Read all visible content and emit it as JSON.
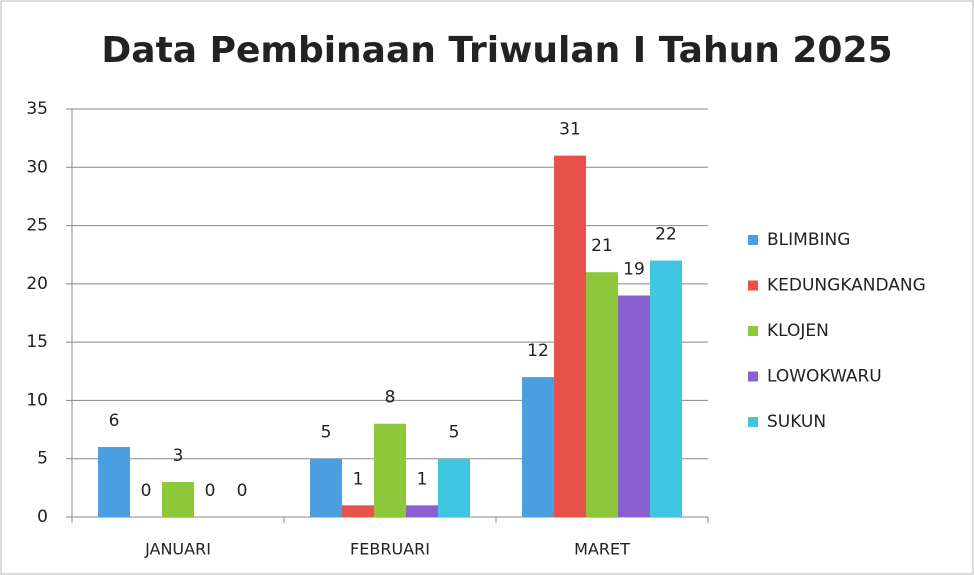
{
  "chart_data": {
    "type": "bar",
    "title": "Data Pembinaan Triwulan I Tahun 2025",
    "categories": [
      "JANUARI",
      "FEBRUARI",
      "MARET"
    ],
    "series": [
      {
        "name": "BLIMBING",
        "color": "#4a9fe0",
        "values": [
          6,
          5,
          12
        ]
      },
      {
        "name": "KEDUNGKANDANG",
        "color": "#e8504a",
        "values": [
          0,
          1,
          31
        ]
      },
      {
        "name": "KLOJEN",
        "color": "#8cc83a",
        "values": [
          3,
          8,
          21
        ]
      },
      {
        "name": "LOWOKWARU",
        "color": "#8a5fd0",
        "values": [
          0,
          1,
          19
        ]
      },
      {
        "name": "SUKUN",
        "color": "#3fc6e0",
        "values": [
          0,
          5,
          22
        ]
      }
    ],
    "ylim": [
      0,
      35
    ],
    "yticks": [
      0,
      5,
      10,
      15,
      20,
      25,
      30,
      35
    ],
    "grid": true,
    "legend": "right"
  }
}
